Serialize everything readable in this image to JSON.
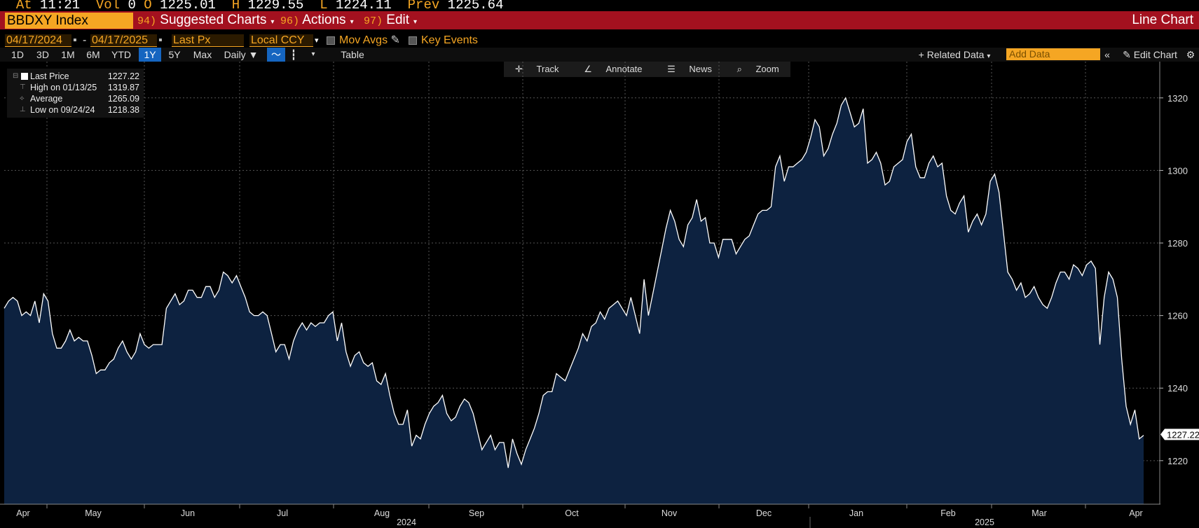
{
  "quote_line": {
    "at_label": "At",
    "time": "11:21",
    "vol_label": "Vol",
    "vol": "0",
    "open_label": "O",
    "open": "1225.01",
    "high_label": "H",
    "high": "1229.55",
    "low_label": "L",
    "low": "1224.11",
    "prev_label": "Prev",
    "prev": "1225.64"
  },
  "header": {
    "ticker": "BBDXY Index",
    "menu": [
      {
        "num": "94)",
        "label": "Suggested Charts"
      },
      {
        "num": "96)",
        "label": "Actions"
      },
      {
        "num": "97)",
        "label": "Edit"
      }
    ],
    "chart_type": "Line Chart"
  },
  "controls": {
    "start_date": "04/17/2024",
    "dash": "-",
    "end_date": "04/17/2025",
    "field": "Last Px",
    "currency": "Local CCY",
    "mov_avgs": "Mov Avgs",
    "key_events": "Key Events"
  },
  "periods": [
    "1D",
    "3D",
    "1M",
    "6M",
    "YTD",
    "1Y",
    "5Y",
    "Max"
  ],
  "active_period": "1Y",
  "frequency": "Daily ▼",
  "table_label": "Table",
  "related_data": "+ Related Data",
  "add_data_placeholder": "Add Data",
  "edit_chart": "Edit Chart",
  "tools": [
    "Track",
    "Annotate",
    "News",
    "Zoom"
  ],
  "legend": [
    {
      "label": "Last Price",
      "value": "1227.22"
    },
    {
      "label": "High on 01/13/25",
      "value": "1319.87"
    },
    {
      "label": "Average",
      "value": "1265.09"
    },
    {
      "label": "Low on 09/24/24",
      "value": "1218.38"
    }
  ],
  "colors": {
    "accent": "#f5a623",
    "bar": "#a3111f",
    "fill": "#0d2240",
    "line": "#ffffff"
  },
  "chart_data": {
    "type": "area",
    "ylim": [
      1208,
      1330
    ],
    "yticks": [
      1220,
      1240,
      1260,
      1280,
      1300,
      1320
    ],
    "last_value_label": "1227.22",
    "months": [
      "Apr",
      "May",
      "Jun",
      "Jul",
      "Aug",
      "Sep",
      "Oct",
      "Nov",
      "Dec",
      "Jan",
      "Feb",
      "Mar",
      "Apr"
    ],
    "years": [
      "2024",
      "2025"
    ],
    "values": [
      1262,
      1264,
      1265,
      1264,
      1260,
      1261,
      1260,
      1264,
      1258,
      1266,
      1264,
      1255,
      1251,
      1251,
      1253,
      1256,
      1253,
      1254,
      1253,
      1253,
      1249,
      1244,
      1245,
      1245,
      1247,
      1248,
      1251,
      1253,
      1250,
      1248,
      1250,
      1255,
      1252,
      1251,
      1252,
      1252,
      1252,
      1262,
      1264,
      1266,
      1263,
      1264,
      1267,
      1267,
      1265,
      1265,
      1268,
      1268,
      1265,
      1267,
      1272,
      1271,
      1269,
      1271,
      1268,
      1265,
      1261,
      1260,
      1260,
      1261,
      1260,
      1255,
      1250,
      1252,
      1252,
      1248,
      1253,
      1256,
      1258,
      1256,
      1258,
      1257,
      1258,
      1258,
      1260,
      1261,
      1253,
      1258,
      1250,
      1246,
      1249,
      1250,
      1247,
      1246,
      1247,
      1242,
      1241,
      1244,
      1238,
      1233,
      1230,
      1230,
      1234,
      1224,
      1227,
      1226,
      1230,
      1233,
      1235,
      1236,
      1238,
      1233,
      1231,
      1232,
      1235,
      1237,
      1236,
      1233,
      1228,
      1223,
      1225,
      1227,
      1223,
      1225,
      1225,
      1218,
      1226,
      1222,
      1219,
      1223,
      1226,
      1229,
      1233,
      1238,
      1239,
      1239,
      1244,
      1243,
      1242,
      1245,
      1248,
      1251,
      1255,
      1253,
      1257,
      1258,
      1261,
      1259,
      1262,
      1263,
      1264,
      1262,
      1260,
      1265,
      1260,
      1255,
      1270,
      1260,
      1266,
      1272,
      1278,
      1284,
      1289,
      1286,
      1281,
      1279,
      1285,
      1287,
      1292,
      1286,
      1287,
      1280,
      1280,
      1276,
      1281,
      1281,
      1281,
      1277,
      1279,
      1281,
      1282,
      1285,
      1288,
      1289,
      1289,
      1290,
      1301,
      1304,
      1297,
      1301,
      1301,
      1302,
      1303,
      1305,
      1309,
      1314,
      1312,
      1304,
      1306,
      1310,
      1313,
      1318,
      1320,
      1316,
      1312,
      1313,
      1317,
      1302,
      1303,
      1305,
      1302,
      1296,
      1297,
      1301,
      1302,
      1303,
      1308,
      1310,
      1301,
      1298,
      1298,
      1302,
      1304,
      1301,
      1302,
      1293,
      1289,
      1288,
      1291,
      1293,
      1283,
      1286,
      1288,
      1285,
      1288,
      1297,
      1299,
      1294,
      1283,
      1272,
      1270,
      1267,
      1269,
      1265,
      1266,
      1268,
      1265,
      1263,
      1262,
      1265,
      1269,
      1272,
      1272,
      1270,
      1274,
      1273,
      1271,
      1274,
      1275,
      1273,
      1252,
      1265,
      1272,
      1270,
      1265,
      1248,
      1235,
      1230,
      1234,
      1226,
      1227
    ]
  }
}
